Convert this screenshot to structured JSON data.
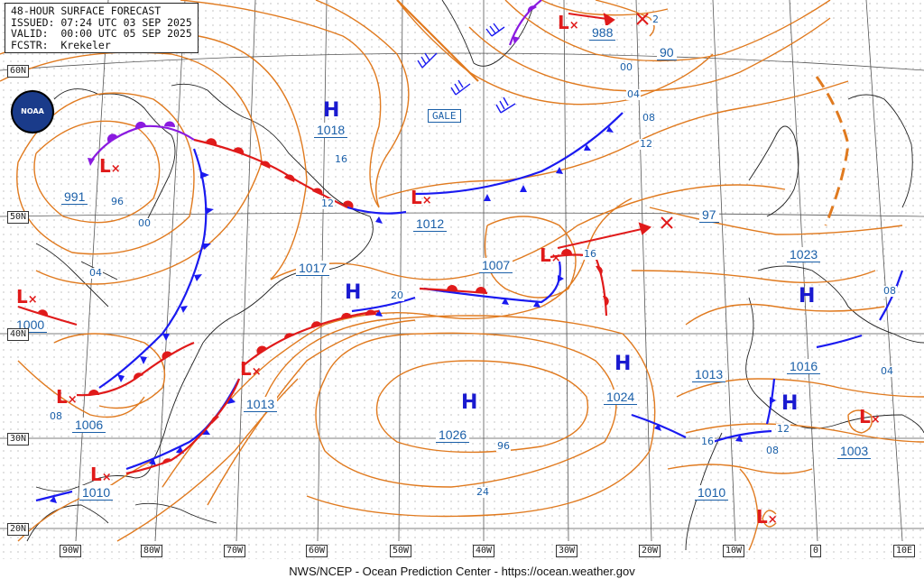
{
  "header": {
    "line1": "48-HOUR SURFACE FORECAST",
    "line2": "ISSUED: 07:24 UTC 03 SEP 2025",
    "line3": "VALID:  00:00 UTC 05 SEP 2025",
    "line4": "FCSTR:  Krekeler"
  },
  "footer": "NWS/NCEP - Ocean Prediction Center - https://ocean.weather.gov",
  "logo_text": "NOAA",
  "gale_label": "GALE",
  "lat_labels": [
    "60N",
    "50N",
    "40N",
    "30N",
    "20N"
  ],
  "lon_labels": [
    "90W",
    "80W",
    "70W",
    "60W",
    "50W",
    "40W",
    "30W",
    "20W",
    "10W",
    "0",
    "10E"
  ],
  "highs": [
    {
      "letter": "H",
      "value": "1018"
    },
    {
      "letter": "H",
      "value": "1017"
    },
    {
      "letter": "H",
      "value": "1026"
    },
    {
      "letter": "H",
      "value": "1024"
    },
    {
      "letter": "H",
      "value": "1023"
    },
    {
      "letter": "H",
      "value": "1016"
    }
  ],
  "lows": [
    {
      "value": "991"
    },
    {
      "value": "988"
    },
    {
      "value": "1012"
    },
    {
      "value": "1007"
    },
    {
      "value": "1000"
    },
    {
      "value": "1006"
    },
    {
      "value": "1013"
    },
    {
      "value": "1010"
    },
    {
      "value": "1003"
    },
    {
      "value": "1010"
    },
    {
      "value": "97"
    },
    {
      "value": "1013"
    },
    {
      "value": "90"
    }
  ],
  "isobar_labels": [
    "96",
    "00",
    "04",
    "08",
    "12",
    "16",
    "20",
    "24",
    "96",
    "00",
    "04",
    "08",
    "12",
    "16",
    "16",
    "08",
    "04",
    "08",
    "12",
    "2"
  ],
  "colors": {
    "isobar": "#e07a1f",
    "cold_front": "#1a1af0",
    "warm_front": "#e01a1a",
    "occluded": "#8a1ae0",
    "low": "#e01a1a",
    "high": "#1a1ad0",
    "label": "#1a5fa8",
    "grid": "#555555",
    "coast": "#222222"
  }
}
